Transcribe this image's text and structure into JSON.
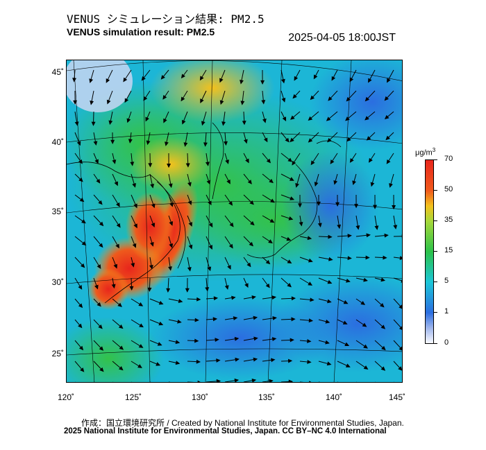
{
  "header": {
    "title_jp": "VENUS シミュレーション結果: PM2.5",
    "title_en": "VENUS simulation result: PM2.5",
    "timestamp": "2025-04-05 18:00JST"
  },
  "map": {
    "lat_labels": [
      "45˚",
      "40˚",
      "35˚",
      "30˚",
      "25˚"
    ],
    "lon_labels": [
      "120˚",
      "125˚",
      "130˚",
      "135˚",
      "140˚",
      "145˚"
    ],
    "lat_range": [
      23,
      46
    ],
    "lon_range": [
      120,
      145
    ],
    "wind_vectors": "arrows-grid",
    "field_colors": {
      "high": "#e8261c",
      "orange": "#f39a1d",
      "green": "#33c24a",
      "cyan": "#1cc6d8",
      "blue": "#2b6ee0",
      "lightblue": "#8fb8f2"
    }
  },
  "colorbar": {
    "unit": "μg/m",
    "unit_sup": "3",
    "ticks": [
      "70",
      "50",
      "35",
      "15",
      "5",
      "1",
      "0"
    ],
    "colors": [
      "#e8261c",
      "#f39a1d",
      "#2bc24a",
      "#1cc6d8",
      "#2b6ee0",
      "#f0f4ff"
    ]
  },
  "footer": {
    "credit_line1": "作成：国立環境研究所 / Created by National Institute for Environmental Studies, Japan.",
    "credit_line2": "2025 National Institute for Environmental Studies, Japan. CC BY–NC 4.0 International"
  }
}
